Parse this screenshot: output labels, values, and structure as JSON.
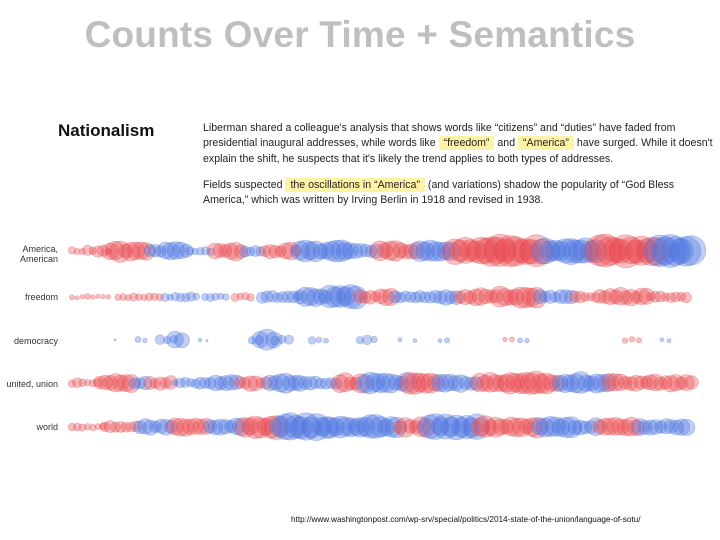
{
  "slide": {
    "title": "Counts Over Time + Semantics",
    "source_url": "http://www.washingtonpost.com/wp-srv/special/politics/2014-state-of-the-union/language-of-sotu/"
  },
  "figure": {
    "section_title": "Nationalism",
    "paragraph1": [
      {
        "text": "Liberman shared a colleague's analysis that shows words like “citizens” and “duties” have faded from"
      },
      {
        "text": "presidential inaugural addresses, while words like ",
        "hl1": "“freedom”",
        "mid": " and ",
        "hl2": "“America”",
        "tail": " have surged. While it doesn't"
      },
      {
        "text": "explain the shift, he suspects that it's likely the trend applies to both types of addresses."
      }
    ],
    "paragraph2": [
      {
        "text": "Fields suspected ",
        "hl1": "the oscillations in “America”",
        "tail": " (and variations) shadow the popularity of “God Bless"
      },
      {
        "text": "America,” which was written by Irving Berlin in 1918 and revised in 1938."
      }
    ]
  },
  "colors": {
    "red": "#e8474c",
    "blue": "#4a74e0",
    "title_gray": "#bfbfbf",
    "highlight": "#fff4a6"
  },
  "chart_data": {
    "type": "bubble-timeline",
    "rows": [
      {
        "name": "America, American",
        "label_lines": [
          "America,",
          "American"
        ]
      },
      {
        "name": "freedom",
        "label_lines": [
          "freedom"
        ]
      },
      {
        "name": "democracy",
        "label_lines": [
          "democracy"
        ]
      },
      {
        "name": "united, union",
        "label_lines": [
          "united, union"
        ]
      },
      {
        "name": "world",
        "label_lines": [
          "world"
        ]
      }
    ]
  }
}
